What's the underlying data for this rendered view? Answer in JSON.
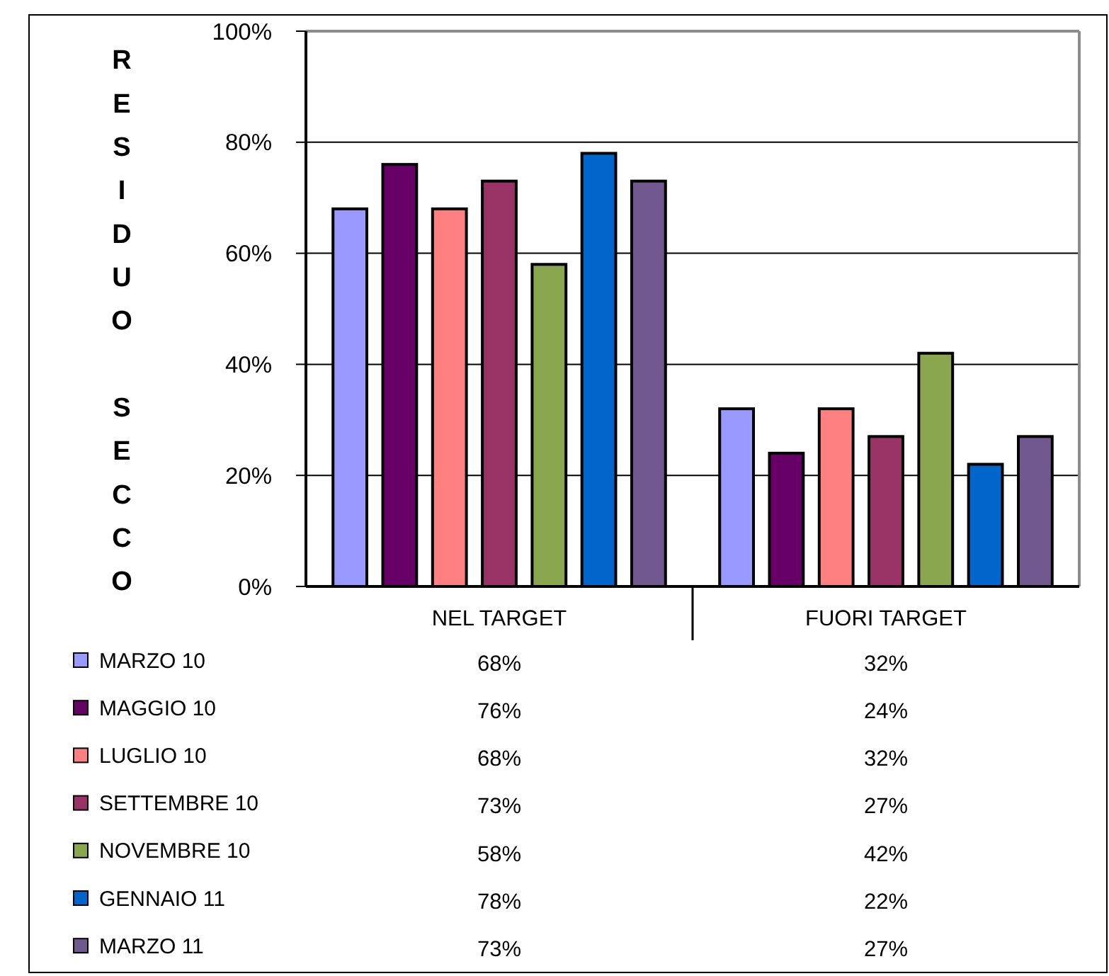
{
  "chart_data": {
    "type": "bar",
    "ylabel": "RESIDUO SECCO",
    "categories": [
      "NEL TARGET",
      "FUORI TARGET"
    ],
    "series": [
      {
        "name": "MARZO 10",
        "color": "#9999ff",
        "values": [
          68,
          32
        ],
        "value_labels": [
          "68%",
          "32%"
        ]
      },
      {
        "name": "MAGGIO 10",
        "color": "#660066",
        "values": [
          76,
          24
        ],
        "value_labels": [
          "76%",
          "24%"
        ]
      },
      {
        "name": "LUGLIO 10",
        "color": "#ff8080",
        "values": [
          68,
          32
        ],
        "value_labels": [
          "68%",
          "32%"
        ]
      },
      {
        "name": "SETTEMBRE 10",
        "color": "#993366",
        "values": [
          73,
          27
        ],
        "value_labels": [
          "73%",
          "27%"
        ]
      },
      {
        "name": "NOVEMBRE 10",
        "color": "#8aa64e",
        "values": [
          58,
          42
        ],
        "value_labels": [
          "58%",
          "42%"
        ]
      },
      {
        "name": "GENNAIO 11",
        "color": "#0066cc",
        "values": [
          78,
          22
        ],
        "value_labels": [
          "78%",
          "22%"
        ]
      },
      {
        "name": "MARZO 11",
        "color": "#71588f",
        "values": [
          73,
          27
        ],
        "value_labels": [
          "73%",
          "27%"
        ]
      }
    ],
    "ylim": [
      0,
      100
    ],
    "yticks": [
      {
        "value": 0,
        "label": "0%"
      },
      {
        "value": 20,
        "label": "20%"
      },
      {
        "value": 40,
        "label": "40%"
      },
      {
        "value": 60,
        "label": "60%"
      },
      {
        "value": 80,
        "label": "80%"
      },
      {
        "value": 100,
        "label": "100%"
      }
    ],
    "grid": "y",
    "legend": "bottom"
  }
}
